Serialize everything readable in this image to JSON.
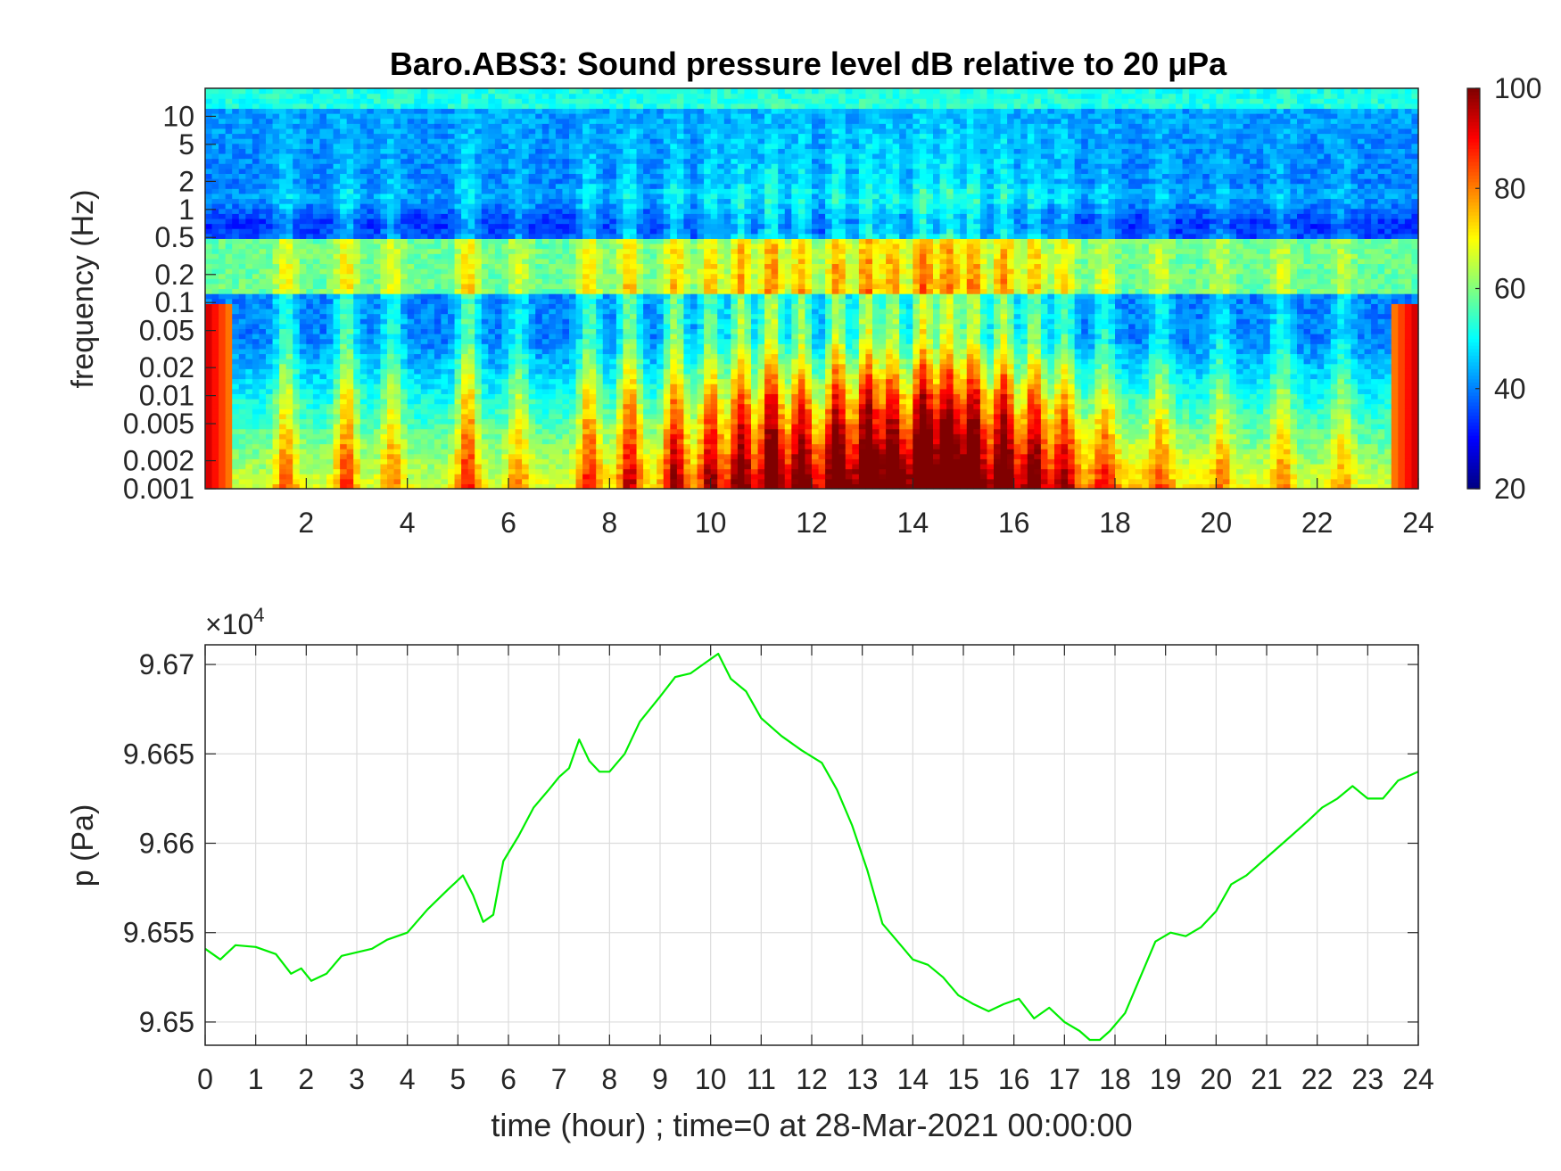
{
  "chart_data": [
    {
      "type": "heatmap",
      "title": "Baro.ABS3: Sound pressure level dB relative to 20 μPa",
      "xlabel": "",
      "ylabel": "frequency (Hz)",
      "xlim": [
        0,
        24
      ],
      "ylim": [
        0.001,
        20
      ],
      "y_scale": "log",
      "x_ticks": [
        "2",
        "4",
        "6",
        "8",
        "10",
        "12",
        "14",
        "16",
        "18",
        "20",
        "22",
        "24"
      ],
      "y_ticks": [
        "0.001",
        "0.002",
        "0.005",
        "0.01",
        "0.02",
        "0.05",
        "0.1",
        "0.2",
        "0.5",
        "1",
        "2",
        "5",
        "10"
      ],
      "colorbar": {
        "range": [
          20,
          100
        ],
        "ticks": [
          "20",
          "40",
          "60",
          "80",
          "100"
        ],
        "colormap": "jet"
      },
      "grid": false,
      "bursts": [
        {
          "t": 1.6,
          "amp": 0.45
        },
        {
          "t": 2.8,
          "amp": 0.55
        },
        {
          "t": 3.7,
          "amp": 0.4
        },
        {
          "t": 5.2,
          "amp": 0.6
        },
        {
          "t": 6.2,
          "amp": 0.35
        },
        {
          "t": 7.6,
          "amp": 0.55
        },
        {
          "t": 8.4,
          "amp": 0.65
        },
        {
          "t": 9.3,
          "amp": 0.7
        },
        {
          "t": 10.0,
          "amp": 0.65
        },
        {
          "t": 10.6,
          "amp": 0.8
        },
        {
          "t": 11.2,
          "amp": 0.9
        },
        {
          "t": 11.8,
          "amp": 0.75
        },
        {
          "t": 12.5,
          "amp": 0.85
        },
        {
          "t": 13.1,
          "amp": 0.9
        },
        {
          "t": 13.6,
          "amp": 0.8
        },
        {
          "t": 14.2,
          "amp": 1.0
        },
        {
          "t": 14.7,
          "amp": 0.95
        },
        {
          "t": 15.2,
          "amp": 0.9
        },
        {
          "t": 15.8,
          "amp": 0.85
        },
        {
          "t": 16.4,
          "amp": 0.7
        },
        {
          "t": 17.0,
          "amp": 0.55
        },
        {
          "t": 17.8,
          "amp": 0.4
        },
        {
          "t": 18.9,
          "amp": 0.35
        },
        {
          "t": 20.1,
          "amp": 0.3
        },
        {
          "t": 21.3,
          "amp": 0.35
        },
        {
          "t": 22.5,
          "amp": 0.3
        }
      ]
    },
    {
      "type": "line",
      "title": "",
      "xlabel": "time (hour) ; time=0 at 28-Mar-2021 00:00:00",
      "ylabel": "p (Pa)",
      "exponent_label": "×10",
      "exponent_power": "4",
      "xlim": [
        0,
        24
      ],
      "ylim": [
        9.6487,
        9.6711
      ],
      "x_ticks": [
        "0",
        "1",
        "2",
        "3",
        "4",
        "5",
        "6",
        "7",
        "8",
        "9",
        "10",
        "11",
        "12",
        "13",
        "14",
        "15",
        "16",
        "17",
        "18",
        "19",
        "20",
        "21",
        "22",
        "23",
        "24"
      ],
      "y_ticks": [
        "9.65",
        "9.655",
        "9.66",
        "9.665",
        "9.67"
      ],
      "grid": true,
      "series": [
        {
          "color": "#00ee00",
          "x": [
            0,
            0.3,
            0.6,
            1.0,
            1.4,
            1.7,
            1.9,
            2.1,
            2.4,
            2.7,
            3.0,
            3.3,
            3.6,
            4.0,
            4.4,
            4.8,
            5.1,
            5.3,
            5.5,
            5.7,
            5.9,
            6.2,
            6.5,
            6.8,
            7.0,
            7.2,
            7.4,
            7.6,
            7.8,
            8.0,
            8.3,
            8.6,
            9.0,
            9.3,
            9.6,
            9.9,
            10.15,
            10.4,
            10.7,
            11.0,
            11.4,
            11.8,
            12.2,
            12.5,
            12.8,
            13.1,
            13.4,
            13.7,
            14.0,
            14.3,
            14.6,
            14.9,
            15.2,
            15.5,
            15.8,
            16.1,
            16.4,
            16.7,
            17.0,
            17.3,
            17.5,
            17.7,
            17.9,
            18.2,
            18.5,
            18.8,
            19.1,
            19.4,
            19.7,
            20.0,
            20.3,
            20.6,
            21.0,
            21.4,
            21.8,
            22.1,
            22.4,
            22.7,
            23.0,
            23.3,
            23.6,
            24.0
          ],
          "y": [
            9.6541,
            9.6535,
            9.6543,
            9.6542,
            9.6538,
            9.6527,
            9.653,
            9.6523,
            9.6527,
            9.6537,
            9.6539,
            9.6541,
            9.6546,
            9.655,
            9.6563,
            9.6574,
            9.6582,
            9.6571,
            9.6556,
            9.656,
            9.659,
            9.6604,
            9.662,
            9.663,
            9.6637,
            9.6642,
            9.6658,
            9.6646,
            9.664,
            9.664,
            9.665,
            9.6668,
            9.6682,
            9.6693,
            9.6695,
            9.6701,
            9.6706,
            9.6692,
            9.6685,
            9.667,
            9.666,
            9.6652,
            9.6645,
            9.663,
            9.661,
            9.6585,
            9.6555,
            9.6545,
            9.6535,
            9.6532,
            9.6525,
            9.6515,
            9.651,
            9.6506,
            9.651,
            9.6513,
            9.6502,
            9.6508,
            9.65,
            9.6495,
            9.649,
            9.649,
            9.6495,
            9.6505,
            9.6525,
            9.6545,
            9.655,
            9.6548,
            9.6553,
            9.6562,
            9.6577,
            9.6582,
            9.6592,
            9.6602,
            9.6612,
            9.662,
            9.6625,
            9.6632,
            9.6625,
            9.6625,
            9.6635,
            9.664
          ]
        }
      ]
    }
  ]
}
